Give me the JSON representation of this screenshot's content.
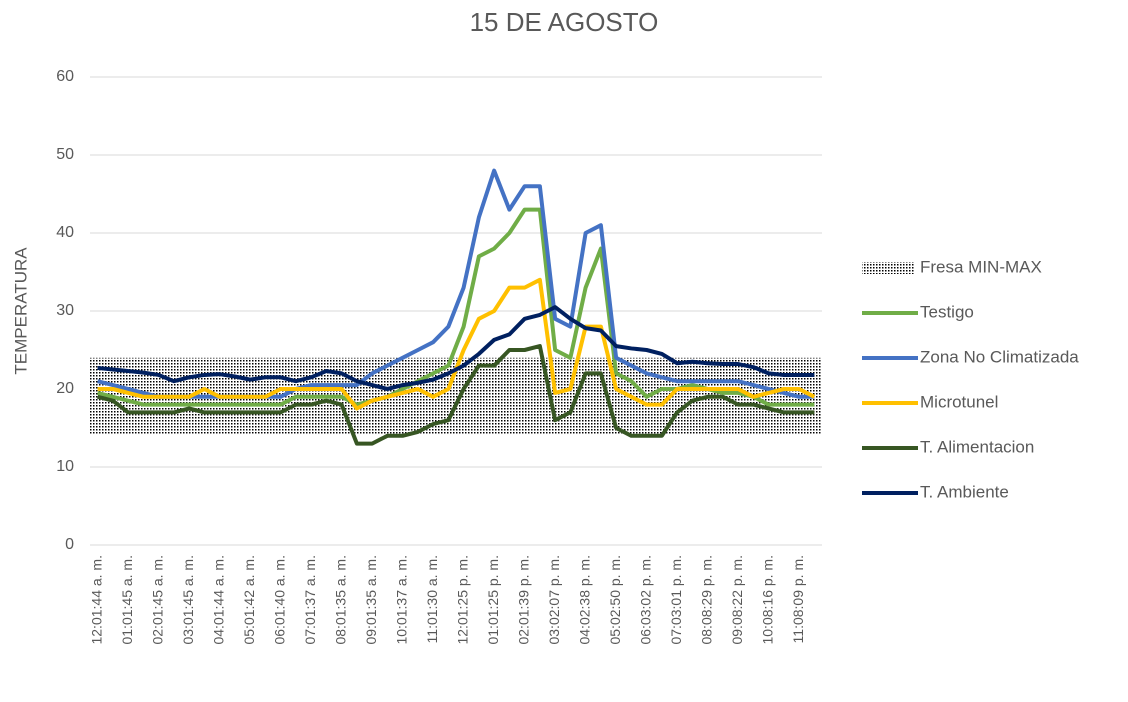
{
  "chart_data": {
    "type": "line",
    "title": "15 DE AGOSTO",
    "ylabel": "TEMPERATURA",
    "categories": [
      "12:01:44 a. m.",
      null,
      "01:01:45 a. m.",
      null,
      "02:01:45 a. m.",
      null,
      "03:01:45 a. m.",
      null,
      "04:01:44 a. m.",
      null,
      "05:01:42 a. m.",
      null,
      "06:01:40 a. m.",
      null,
      "07:01:37 a. m.",
      null,
      "08:01:35 a. m.",
      null,
      "09:01:35 a. m.",
      null,
      "10:01:37 a. m.",
      null,
      "11:01:30 a. m.",
      null,
      "12:01:25 p. m.",
      null,
      "01:01:25 p. m.",
      null,
      "02:01:39 p. m.",
      null,
      "03:02:07 p. m.",
      null,
      "04:02:38 p. m.",
      null,
      "05:02:50 p. m.",
      null,
      "06:03:02 p. m.",
      null,
      "07:03:01 p. m.",
      null,
      "08:08:29 p. m.",
      null,
      "09:08:22 p. m.",
      null,
      "10:08:16 p. m.",
      null,
      "11:08:09 p. m.",
      null
    ],
    "band": {
      "name": "Fresa MIN-MAX",
      "low": 14.3,
      "high": 24
    },
    "series": [
      {
        "name": "Testigo",
        "color": "#70ad47",
        "values": [
          19.5,
          19,
          18.5,
          18,
          18,
          18,
          18,
          18,
          18,
          18,
          18,
          18,
          18,
          19,
          19,
          19,
          19,
          18,
          18.5,
          19,
          20,
          21,
          22,
          23,
          28,
          37,
          38,
          40,
          43,
          43,
          25,
          24,
          33,
          38,
          22,
          21,
          19,
          20,
          20,
          20.5,
          20,
          19.5,
          19.5,
          19,
          18,
          18,
          18,
          18
        ]
      },
      {
        "name": "Zona No Climatizada",
        "color": "#4472c4",
        "values": [
          21,
          20.5,
          20,
          19.5,
          19,
          19,
          19,
          19,
          19,
          19,
          19,
          19,
          19,
          20,
          20.5,
          20.5,
          20.5,
          20.5,
          22,
          23,
          24,
          25,
          26,
          28,
          33,
          42,
          48,
          43,
          46,
          46,
          29,
          28,
          40,
          41,
          24,
          23,
          22,
          21.5,
          21,
          21,
          21,
          21,
          21,
          20.5,
          20,
          19.5,
          19,
          19
        ]
      },
      {
        "name": "Microtunel",
        "color": "#ffc000",
        "values": [
          20,
          20,
          19.5,
          19,
          19,
          19,
          19,
          20,
          19,
          19,
          19,
          19,
          20,
          20,
          20,
          20,
          20,
          17.5,
          18.5,
          19,
          19.5,
          20,
          19,
          20,
          25,
          29,
          30,
          33,
          33,
          34,
          19.5,
          20,
          28,
          28,
          20,
          19,
          18,
          18,
          20,
          20,
          20,
          20,
          20,
          19,
          19.5,
          20,
          20,
          19
        ]
      },
      {
        "name": "T. Alimentacion",
        "color": "#375623",
        "values": [
          19,
          18.5,
          17,
          17,
          17,
          17,
          17.5,
          17,
          17,
          17,
          17,
          17,
          17,
          18,
          18,
          18.5,
          18,
          13,
          13,
          14,
          14,
          14.5,
          15.5,
          16,
          20,
          23,
          23,
          25,
          25,
          25.5,
          16,
          17,
          22,
          22,
          15,
          14,
          14,
          14,
          17,
          18.5,
          19,
          19,
          18,
          18,
          17.5,
          17,
          17,
          17
        ]
      },
      {
        "name": "T. Ambiente",
        "color": "#002060",
        "values": [
          22.7,
          22.5,
          22.3,
          22.1,
          21.8,
          21,
          21.5,
          21.8,
          21.9,
          21.6,
          21.2,
          21.5,
          21.5,
          21,
          21.5,
          22.3,
          22,
          21,
          20.5,
          20,
          20.5,
          20.8,
          21.2,
          22,
          23,
          24.5,
          26.3,
          27,
          29,
          29.5,
          30.5,
          29,
          27.8,
          27.5,
          25.5,
          25.2,
          25,
          24.5,
          23.3,
          23.5,
          23.3,
          23.2,
          23.2,
          22.8,
          22,
          21.8,
          21.8,
          21.8
        ]
      }
    ],
    "ylim": [
      0,
      60
    ],
    "yticks": [
      0,
      10,
      20,
      30,
      40,
      50,
      60
    ],
    "grid": true,
    "legend": "right"
  }
}
